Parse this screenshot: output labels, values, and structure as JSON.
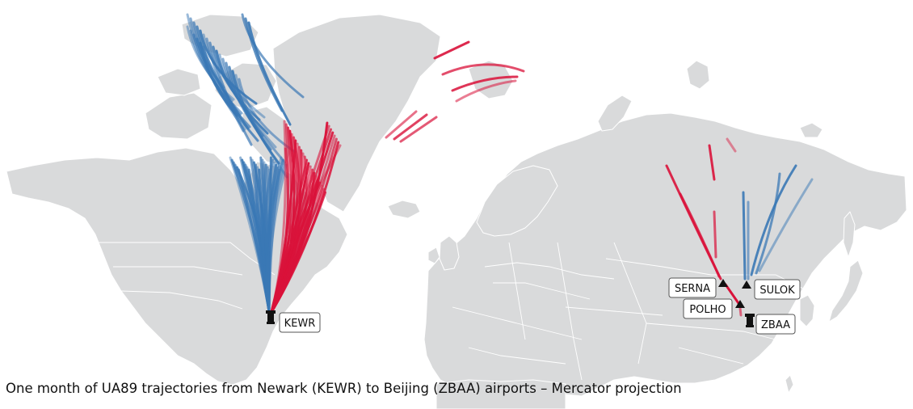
{
  "caption": "One month of UA89 trajectories from Newark (KEWR) to Beijing (ZBAA) airports – Mercator projection",
  "colors": {
    "land": "#d9dadb",
    "track_blue": "#3a78b5",
    "track_red": "#d9123a",
    "label_border": "#555555"
  },
  "airports": [
    {
      "code": "KEWR",
      "role": "origin",
      "icon": "airport-tower-icon"
    },
    {
      "code": "ZBAA",
      "role": "destination",
      "icon": "airport-tower-icon"
    }
  ],
  "waypoints": [
    {
      "name": "SERNA",
      "icon": "triangle-waypoint-icon"
    },
    {
      "name": "SULOK",
      "icon": "triangle-waypoint-icon"
    },
    {
      "name": "POLHO",
      "icon": "triangle-waypoint-icon"
    }
  ],
  "track_groups": [
    {
      "color": "blue",
      "via": "SULOK"
    },
    {
      "color": "red",
      "via": "SERNA"
    }
  ]
}
